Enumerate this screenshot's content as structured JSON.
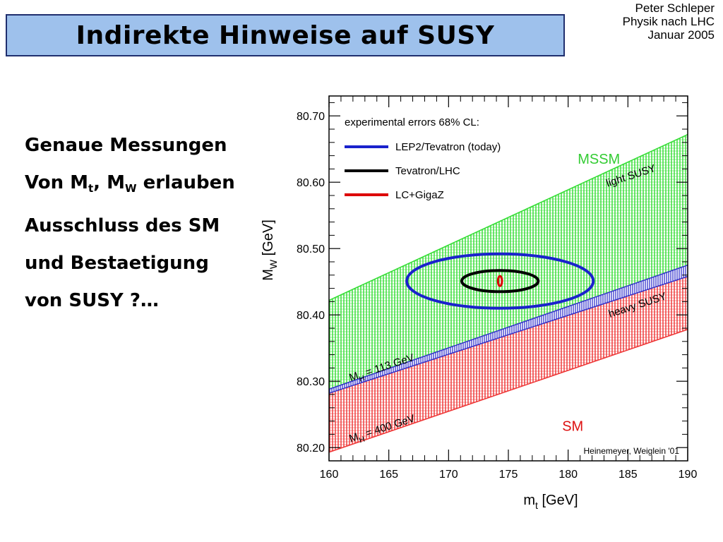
{
  "slide": {
    "title": "Indirekte Hinweise auf SUSY",
    "author": [
      "Peter Schleper",
      "Physik nach LHC",
      "Januar 2005"
    ],
    "bullet": {
      "line1": "Genaue Messungen",
      "line2_pre": "Von M",
      "line2_sub1": "t",
      "line2_mid": ", M",
      "line2_sub2": "W",
      "line2_post": " erlauben",
      "line3": "Ausschluss des SM",
      "line4": "und Bestaetigung",
      "line5": "von SUSY ?…"
    }
  },
  "chart_data": {
    "type": "area",
    "xlim": [
      160,
      190
    ],
    "ylim": [
      80.18,
      80.73
    ],
    "x_ticks": [
      160,
      165,
      170,
      175,
      180,
      185,
      190
    ],
    "y_ticks": [
      80.2,
      80.3,
      80.4,
      80.5,
      80.6,
      80.7
    ],
    "xlabel": {
      "main": "m",
      "sub": "t",
      "unit": " [GeV]"
    },
    "ylabel": {
      "main": "M",
      "sub": "W",
      "unit": " [GeV]"
    },
    "bands": [
      {
        "name": "MSSM",
        "color": "#33dd33",
        "upper": [
          [
            160,
            80.422
          ],
          [
            190,
            80.672
          ]
        ],
        "lower": [
          [
            160,
            80.288
          ],
          [
            190,
            80.475
          ]
        ]
      },
      {
        "name": "SM",
        "color": "#ee3333",
        "upper": [
          [
            160,
            80.282
          ],
          [
            190,
            80.458
          ]
        ],
        "lower": [
          [
            160,
            80.193
          ],
          [
            190,
            80.378
          ]
        ]
      },
      {
        "name": "overlap",
        "color": "#3333cc",
        "upper": [
          [
            160,
            80.288
          ],
          [
            190,
            80.475
          ]
        ],
        "lower": [
          [
            160,
            80.282
          ],
          [
            190,
            80.458
          ]
        ]
      }
    ],
    "ellipses": [
      {
        "label": "LEP2/Tevatron (today)",
        "color": "#1a22cc",
        "cx": 174.3,
        "cy": 80.451,
        "rx": 7.8,
        "ry": 0.041,
        "width": 4
      },
      {
        "label": "Tevatron/LHC",
        "color": "#000000",
        "cx": 174.3,
        "cy": 80.451,
        "rx": 3.2,
        "ry": 0.016,
        "width": 4
      },
      {
        "label": "LC+GigaZ",
        "color": "#dd0000",
        "cx": 174.3,
        "cy": 80.451,
        "rx": 0.17,
        "ry": 0.0075,
        "width": 3
      }
    ],
    "legend_title": "experimental errors 68% CL:",
    "band_labels": [
      {
        "text": "MSSM",
        "color": "#33cc33",
        "x": 180.8,
        "y": 80.628,
        "rotate": 0,
        "size": 20
      },
      {
        "text": "SM",
        "color": "#dd1111",
        "x": 179.5,
        "y": 80.225,
        "rotate": 0,
        "size": 20
      },
      {
        "text": "light SUSY",
        "color": "#000000",
        "x": 183.3,
        "y": 80.593,
        "rotate": -18,
        "size": 15
      },
      {
        "text": "heavy SUSY",
        "color": "#000000",
        "x": 183.5,
        "y": 80.396,
        "rotate": -18,
        "size": 15
      },
      {
        "pre": "M",
        "sub": "H",
        "text": " = 113 GeV",
        "color": "#000000",
        "x": 161.8,
        "y": 80.3,
        "rotate": -18,
        "size": 15
      },
      {
        "pre": "M",
        "sub": "H",
        "text": " = 400 GeV",
        "color": "#000000",
        "x": 161.8,
        "y": 80.208,
        "rotate": -18,
        "size": 15
      }
    ],
    "credit": "Heinemeyer, Weiglein '01"
  }
}
